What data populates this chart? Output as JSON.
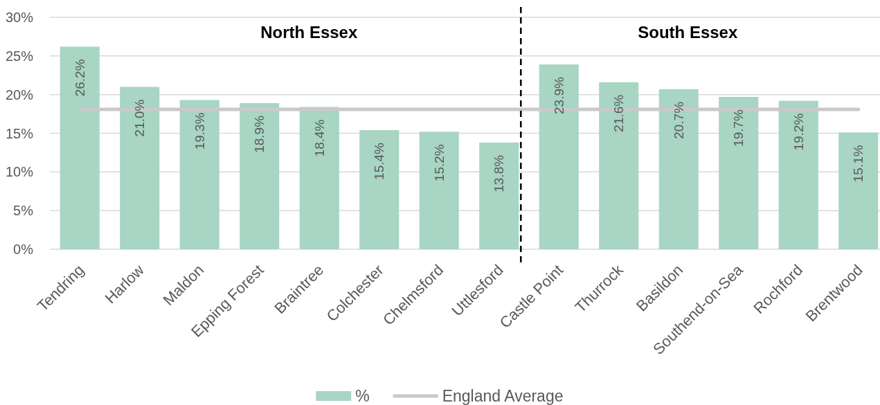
{
  "chart_data": {
    "type": "bar",
    "categories": [
      "Tendring",
      "Harlow",
      "Maldon",
      "Epping Forest",
      "Braintree",
      "Colchester",
      "Chelmsford",
      "Uttlesford",
      "Castle Point",
      "Thurrock",
      "Basildon",
      "Southend-on-Sea",
      "Rochford",
      "Brentwood"
    ],
    "series": [
      {
        "name": "%",
        "color": "#a8d5c4",
        "values": [
          26.2,
          21.0,
          19.3,
          18.9,
          18.4,
          15.4,
          15.2,
          13.8,
          23.9,
          21.6,
          20.7,
          19.7,
          19.2,
          15.1
        ],
        "value_labels": [
          "26.2%",
          "21.0%",
          "19.3%",
          "18.9%",
          "18.4%",
          "15.4%",
          "15.2%",
          "13.8%",
          "23.9%",
          "21.6%",
          "20.7%",
          "19.7%",
          "19.2%",
          "15.1%"
        ]
      },
      {
        "name": "England Average",
        "type": "line",
        "color": "#c9c9c9",
        "values": [
          18.1,
          18.1,
          18.1,
          18.1,
          18.1,
          18.1,
          18.1,
          18.1,
          18.1,
          18.1,
          18.1,
          18.1,
          18.1,
          18.1
        ]
      }
    ],
    "ylim": [
      0,
      30
    ],
    "yticks": [
      {
        "value": 0,
        "label": "0%"
      },
      {
        "value": 5,
        "label": "5%"
      },
      {
        "value": 10,
        "label": "10%"
      },
      {
        "value": 15,
        "label": "15%"
      },
      {
        "value": 20,
        "label": "20%"
      },
      {
        "value": 25,
        "label": "25%"
      },
      {
        "value": 30,
        "label": "30%"
      }
    ],
    "grid": "y",
    "legend": "bottom",
    "annotations": [
      "North Essex",
      "South Essex"
    ]
  }
}
